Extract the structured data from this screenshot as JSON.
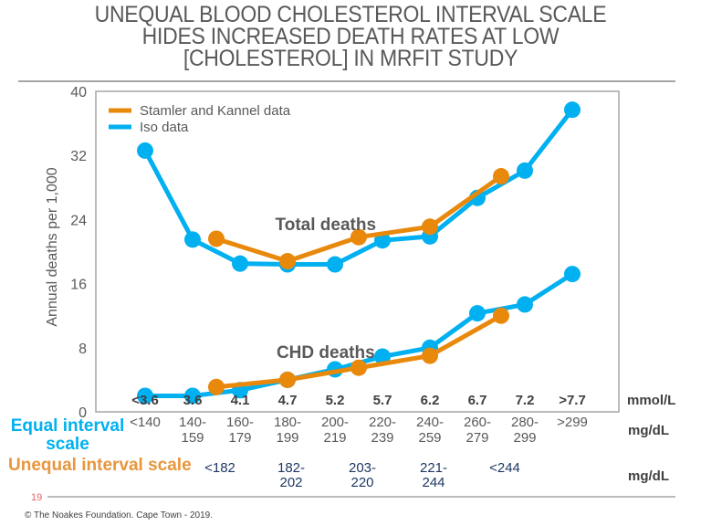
{
  "title_lines": [
    "UNEQUAL BLOOD CHOLESTEROL INTERVAL SCALE",
    "HIDES INCREASED DEATH RATES AT LOW",
    "[CHOLESTEROL] IN MRFIT STUDY"
  ],
  "colors": {
    "stamler": "#e8890c",
    "iso": "#00b0f0",
    "axis": "#a6a6a6",
    "text": "#595959",
    "unequal_values": "#1f3864"
  },
  "chart_data": {
    "type": "line",
    "title": "UNEQUAL BLOOD CHOLESTEROL INTERVAL SCALE HIDES INCREASED DEATH RATES AT LOW [CHOLESTEROL] IN MRFIT STUDY",
    "ylabel": "Annual deaths per 1,000",
    "ylim": [
      0,
      40
    ],
    "yticks": [
      0,
      8,
      16,
      24,
      32,
      40
    ],
    "grid": false,
    "legend_position": "top-left",
    "legend": [
      "Stamler and Kannel data",
      "Iso data"
    ],
    "x_categories_mmol": [
      "<3.6",
      "3.6",
      "4.1",
      "4.7",
      "5.2",
      "5.7",
      "6.2",
      "6.7",
      "7.2",
      ">7.7"
    ],
    "x_unit_mmol": "mmol/L",
    "x_categories_equal_mgdl": [
      [
        "<140"
      ],
      [
        "140-",
        "159"
      ],
      [
        "160-",
        "179"
      ],
      [
        "180-",
        "199"
      ],
      [
        "200-",
        "219"
      ],
      [
        "220-",
        "239"
      ],
      [
        "240-",
        "259"
      ],
      [
        "260-",
        "279"
      ],
      [
        "280-",
        "299"
      ],
      [
        ">299"
      ]
    ],
    "x_categories_unequal_mgdl": [
      {
        "lines": [
          "<182"
        ],
        "pos": 1.5
      },
      {
        "lines": [
          "182-",
          "202"
        ],
        "pos": 3.0
      },
      {
        "lines": [
          "203-",
          "220"
        ],
        "pos": 4.5
      },
      {
        "lines": [
          "221-",
          "244"
        ],
        "pos": 6.0
      },
      {
        "lines": [
          "<244"
        ],
        "pos": 7.5
      }
    ],
    "x_unit_mgdl": "mg/dL",
    "equal_scale_label": [
      "Equal interval",
      "scale"
    ],
    "unequal_scale_label": "Unequal interval scale",
    "annotations": [
      {
        "text": "Total deaths",
        "x": 3.9,
        "y": 23.5
      },
      {
        "text": "CHD deaths",
        "x": 3.9,
        "y": 7.5
      }
    ],
    "series": [
      {
        "name": "Iso data",
        "group": "Total deaths",
        "color": "#00b0f0",
        "x": [
          0,
          1,
          2,
          3,
          4,
          5,
          6,
          7,
          8,
          9
        ],
        "values": [
          32.6,
          21.5,
          18.5,
          18.4,
          18.4,
          21.4,
          21.9,
          26.7,
          30.1,
          37.7
        ]
      },
      {
        "name": "Stamler and Kannel data",
        "group": "Total deaths",
        "color": "#e8890c",
        "x": [
          1.5,
          3.0,
          4.5,
          6.0,
          7.5
        ],
        "values": [
          21.6,
          18.8,
          21.8,
          23.1,
          29.4
        ]
      },
      {
        "name": "Iso data",
        "group": "CHD deaths",
        "color": "#00b0f0",
        "x": [
          0,
          1,
          2,
          3,
          4,
          5,
          6,
          7,
          8,
          9
        ],
        "values": [
          2.0,
          2.0,
          2.7,
          4.0,
          5.3,
          6.9,
          8.0,
          12.3,
          13.4,
          17.2
        ]
      },
      {
        "name": "Stamler and Kannel data",
        "group": "CHD deaths",
        "color": "#e8890c",
        "x": [
          1.5,
          3.0,
          4.5,
          6.0,
          7.5
        ],
        "values": [
          3.1,
          4.0,
          5.5,
          7.0,
          12.0
        ]
      }
    ]
  },
  "slide_number": "19",
  "footer": "© The Noakes Foundation. Cape Town - 2019."
}
